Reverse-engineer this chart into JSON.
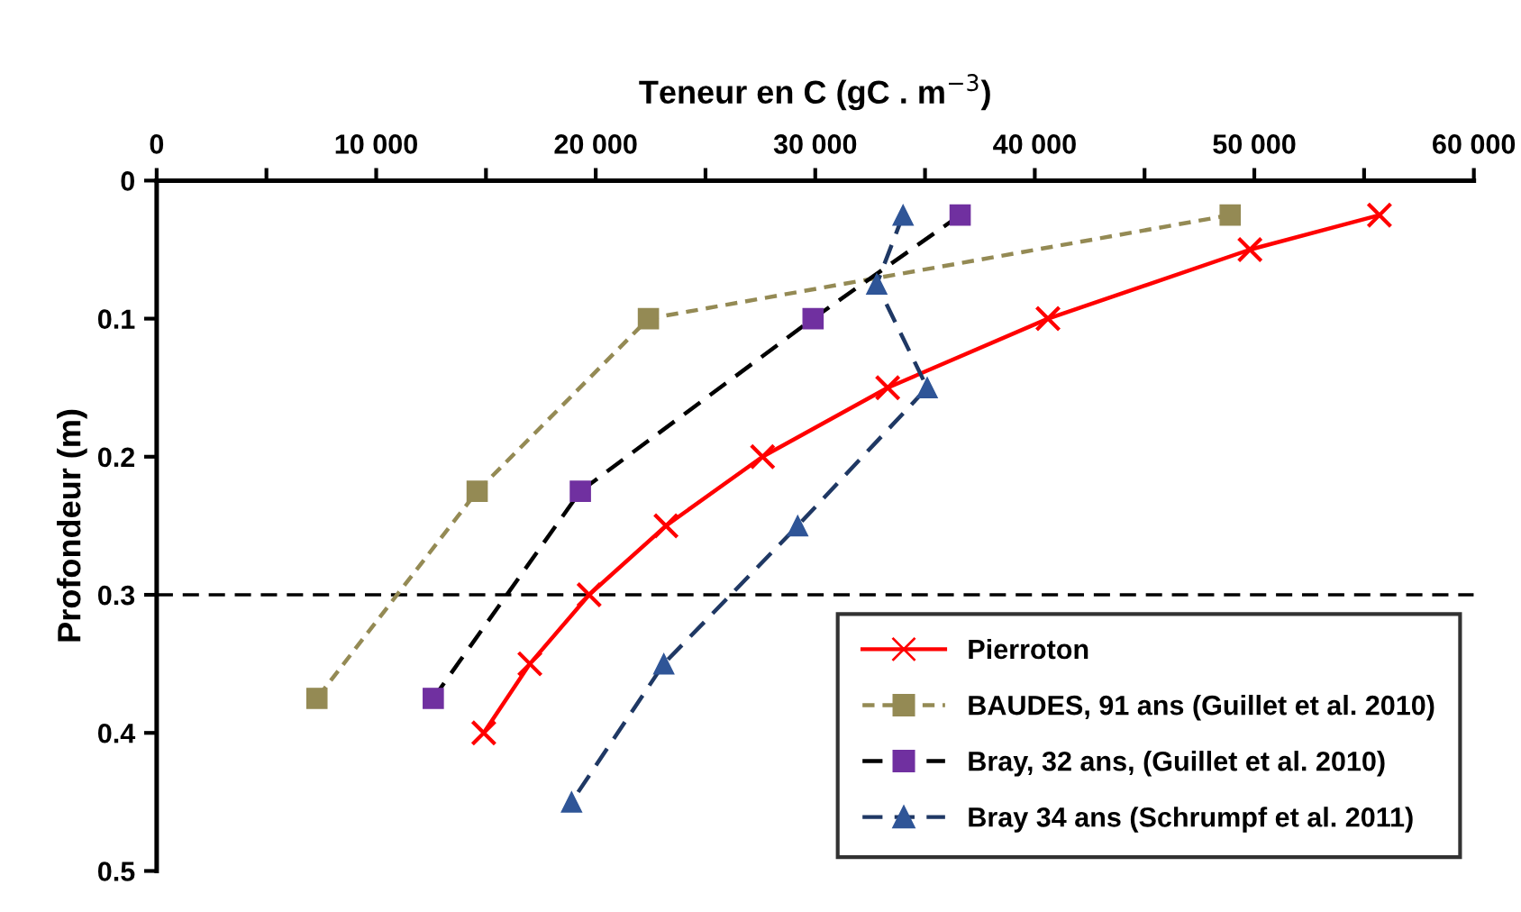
{
  "chart_data": {
    "type": "line",
    "xlabel": "Teneur en C (gC . m$^{−3}$)",
    "ylabel": "Profondeur (m)",
    "xlim": [
      0,
      60000
    ],
    "xticks": [
      0,
      {
        "value": 5000,
        "label": null
      },
      {
        "value": 10000,
        "label": "10 000"
      },
      {
        "value": 15000,
        "label": null
      },
      {
        "value": 20000,
        "label": "20 000"
      },
      {
        "value": 25000,
        "label": null
      },
      {
        "value": 30000,
        "label": "30 000"
      },
      {
        "value": 35000,
        "label": null
      },
      {
        "value": 40000,
        "label": "40 000"
      },
      {
        "value": 45000,
        "label": null
      },
      {
        "value": 50000,
        "label": "50 000"
      },
      {
        "value": 55000,
        "label": null
      },
      {
        "value": 60000,
        "label": "60 000"
      }
    ],
    "ylim": [
      0.5,
      0
    ],
    "yticks": [
      0,
      0.1,
      0.2,
      0.3,
      0.4,
      0.5
    ],
    "grid": false,
    "legend": "bottom right",
    "ref_lines": [
      {
        "axis": "y",
        "value": 0.3,
        "color": "#000000",
        "line_style": "dashed"
      }
    ],
    "series": [
      {
        "name": "Pierroton",
        "color": "#ff0000",
        "marker": "cross",
        "line_style": "solid",
        "x": [
          55700,
          49800,
          40600,
          33300,
          27600,
          23200,
          19700,
          17000,
          14900
        ],
        "values": [
          0.025,
          0.05,
          0.1,
          0.15,
          0.2,
          0.25,
          0.3,
          0.35,
          0.4
        ]
      },
      {
        "name": "BAUDES, 91 ans (Guillet et al. 2010)",
        "color": "#948a54",
        "marker": "square",
        "line_style": "dotted",
        "x": [
          48900,
          22400,
          14600,
          7300
        ],
        "values": [
          0.025,
          0.1,
          0.225,
          0.375
        ]
      },
      {
        "type": "line",
        "color": "#000000",
        "marker": "none",
        "line_style": "dashed",
        "x": [
          36600,
          29900,
          19300,
          12600
        ],
        "values": [
          0.025,
          0.1,
          0.225,
          0.375
        ]
      },
      {
        "type": "scatter",
        "name": "Bray, 32 ans, (Guillet et al. 2010)",
        "color": "#7030a0",
        "marker": "square",
        "x": [
          36600,
          29900,
          19300,
          12600
        ],
        "values": [
          0.025,
          0.1,
          0.225,
          0.375
        ]
      },
      {
        "type": "line",
        "color": "#1f3864",
        "marker": "none",
        "line_style": "dashed",
        "x": [
          34000,
          32800,
          35100,
          29200,
          23100,
          18900
        ],
        "values": [
          0.025,
          0.075,
          0.15,
          0.25,
          0.35,
          0.45
        ]
      },
      {
        "type": "scatter",
        "name": "Bray 34 ans (Schrumpf et al. 2011)",
        "color": "#2f5597",
        "marker": "triangle",
        "x": [
          34000,
          32800,
          35100,
          29200,
          23100,
          18900
        ],
        "values": [
          0.025,
          0.075,
          0.15,
          0.25,
          0.35,
          0.45
        ]
      }
    ]
  }
}
